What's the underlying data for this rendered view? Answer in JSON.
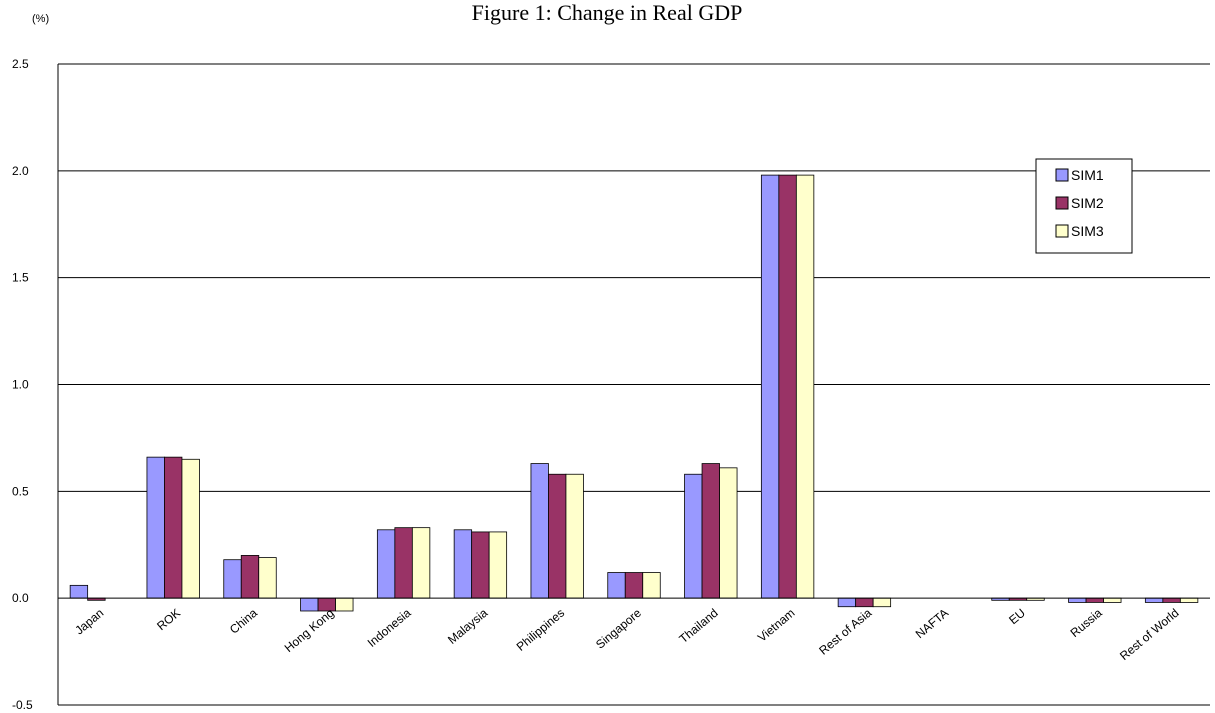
{
  "chart_data": {
    "type": "bar",
    "title": "Figure 1: Change in Real GDP",
    "unit_label": "(%)",
    "xlabel": "",
    "ylabel": "",
    "ylim": [
      -0.5,
      2.5
    ],
    "y_ticks": [
      "2.5",
      "2.0",
      "1.5",
      "1.0",
      "0.5",
      "0.0",
      "-0.5"
    ],
    "y_tick_values": [
      2.5,
      2.0,
      1.5,
      1.0,
      0.5,
      0.0,
      -0.5
    ],
    "grid": true,
    "legend_position": "right",
    "categories": [
      "Japan",
      "ROK",
      "China",
      "Hong Kong",
      "Indonesia",
      "Malaysia",
      "Philippines",
      "Singapore",
      "Thailand",
      "Vietnam",
      "Rest of Asia",
      "NAFTA",
      "EU",
      "Russia",
      "Rest of World"
    ],
    "series": [
      {
        "name": "SIM1",
        "color": "#9999ff",
        "values": [
          0.06,
          0.66,
          0.18,
          -0.06,
          0.32,
          0.32,
          0.63,
          0.12,
          0.58,
          1.98,
          -0.04,
          0.0,
          -0.01,
          -0.02,
          -0.02
        ]
      },
      {
        "name": "SIM2",
        "color": "#993366",
        "values": [
          -0.01,
          0.66,
          0.2,
          -0.06,
          0.33,
          0.31,
          0.58,
          0.12,
          0.63,
          1.98,
          -0.04,
          0.0,
          -0.01,
          -0.02,
          -0.02
        ]
      },
      {
        "name": "SIM3",
        "color": "#ffffcc",
        "values": [
          0.0,
          0.65,
          0.19,
          -0.06,
          0.33,
          0.31,
          0.58,
          0.12,
          0.61,
          1.98,
          -0.04,
          0.0,
          -0.01,
          -0.02,
          -0.02
        ]
      }
    ]
  }
}
